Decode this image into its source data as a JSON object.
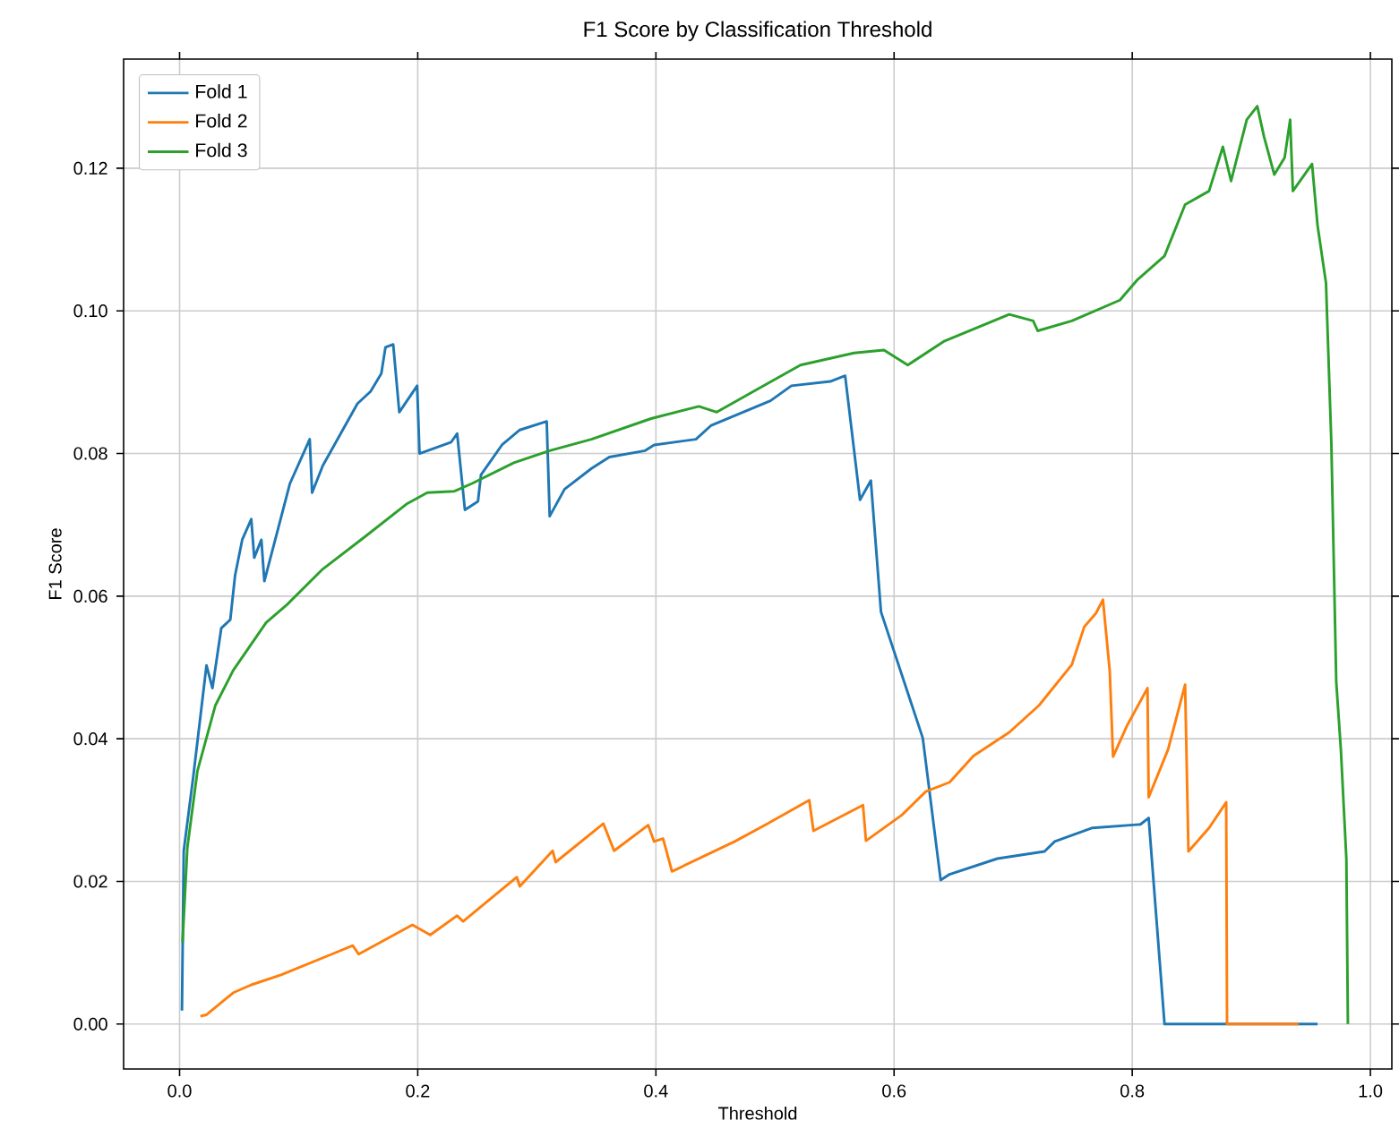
{
  "chart_data": {
    "type": "line",
    "title": "F1 Score by Classification Threshold",
    "xlabel": "Threshold",
    "ylabel": "F1 Score",
    "xlim": [
      -0.047,
      1.018
    ],
    "ylim": [
      -0.0063,
      0.1353
    ],
    "xticks": [
      {
        "value": 0,
        "label": "0.0"
      },
      {
        "value": 0.2,
        "label": "0.2"
      },
      {
        "value": 0.4,
        "label": "0.4"
      },
      {
        "value": 0.6,
        "label": "0.6"
      },
      {
        "value": 0.8,
        "label": "0.8"
      },
      {
        "value": 1,
        "label": "1.0"
      }
    ],
    "yticks": [
      {
        "value": 0,
        "label": "0.00"
      },
      {
        "value": 0.02,
        "label": "0.02"
      },
      {
        "value": 0.04,
        "label": "0.04"
      },
      {
        "value": 0.06,
        "label": "0.06"
      },
      {
        "value": 0.08,
        "label": "0.08"
      },
      {
        "value": 0.1,
        "label": "0.10"
      },
      {
        "value": 0.12,
        "label": "0.12"
      }
    ],
    "grid": true,
    "legend": "top left",
    "marker": "none",
    "line_style": "solid",
    "series": [
      {
        "name": "Fold 1",
        "color": "#1f77b4",
        "x": [
          0.002,
          0.0035,
          0.0115,
          0.0226,
          0.0276,
          0.035,
          0.0426,
          0.0466,
          0.0526,
          0.0602,
          0.0627,
          0.0687,
          0.0712,
          0.0927,
          0.1093,
          0.1113,
          0.1203,
          0.1353,
          0.1494,
          0.1604,
          0.1694,
          0.1729,
          0.1794,
          0.1845,
          0.1995,
          0.2015,
          0.2281,
          0.2331,
          0.2396,
          0.2506,
          0.2531,
          0.2707,
          0.2857,
          0.3083,
          0.3108,
          0.3233,
          0.3459,
          0.3609,
          0.391,
          0.3985,
          0.4336,
          0.4461,
          0.4962,
          0.5138,
          0.5464,
          0.5589,
          0.5714,
          0.5805,
          0.589,
          0.6241,
          0.6391,
          0.6466,
          0.6867,
          0.7263,
          0.7349,
          0.7666,
          0.8069,
          0.8138,
          0.8271,
          0.9556
        ],
        "values": [
          0.0019,
          0.0243,
          0.0347,
          0.0503,
          0.0471,
          0.0555,
          0.0567,
          0.0629,
          0.0679,
          0.0708,
          0.0654,
          0.0679,
          0.0621,
          0.0758,
          0.082,
          0.0745,
          0.0783,
          0.0828,
          0.087,
          0.0887,
          0.0912,
          0.0949,
          0.0953,
          0.0858,
          0.0895,
          0.08,
          0.0816,
          0.0828,
          0.0721,
          0.0733,
          0.077,
          0.0812,
          0.0833,
          0.0845,
          0.0712,
          0.075,
          0.0779,
          0.0795,
          0.0804,
          0.0812,
          0.082,
          0.0839,
          0.0874,
          0.0895,
          0.0901,
          0.0909,
          0.0735,
          0.0762,
          0.0578,
          0.0401,
          0.0202,
          0.021,
          0.0232,
          0.0242,
          0.0256,
          0.0275,
          0.028,
          0.0289,
          0.0,
          0.0
        ]
      },
      {
        "name": "Fold 2",
        "color": "#ff7f0e",
        "x": [
          0.0175,
          0.0226,
          0.0451,
          0.0602,
          0.0852,
          0.1278,
          0.1454,
          0.1504,
          0.1955,
          0.2105,
          0.2331,
          0.2381,
          0.2832,
          0.2857,
          0.3133,
          0.3158,
          0.3559,
          0.3649,
          0.3935,
          0.3985,
          0.406,
          0.4135,
          0.4662,
          0.4937,
          0.5288,
          0.5323,
          0.5739,
          0.5764,
          0.6065,
          0.6266,
          0.6466,
          0.6667,
          0.6967,
          0.7218,
          0.7493,
          0.7597,
          0.7695,
          0.7754,
          0.7811,
          0.7839,
          0.7955,
          0.8128,
          0.8138,
          0.8301,
          0.8444,
          0.8472,
          0.8645,
          0.8789,
          0.8796,
          0.9396
        ],
        "values": [
          0.0011,
          0.0013,
          0.0044,
          0.0055,
          0.0069,
          0.0098,
          0.011,
          0.0098,
          0.0139,
          0.0125,
          0.0152,
          0.0144,
          0.0206,
          0.0193,
          0.0243,
          0.0227,
          0.0281,
          0.0243,
          0.0279,
          0.0256,
          0.026,
          0.0214,
          0.0256,
          0.0281,
          0.0314,
          0.0271,
          0.0307,
          0.0257,
          0.0293,
          0.0326,
          0.0339,
          0.0376,
          0.0409,
          0.0447,
          0.0504,
          0.0557,
          0.0576,
          0.0595,
          0.0495,
          0.0375,
          0.0418,
          0.0471,
          0.0318,
          0.0385,
          0.0476,
          0.0242,
          0.0275,
          0.0311,
          0.0,
          0.0
        ]
      },
      {
        "name": "Fold 3",
        "color": "#2ca02c",
        "x": [
          0.0025,
          0.0065,
          0.015,
          0.0301,
          0.0451,
          0.0727,
          0.0902,
          0.1203,
          0.1554,
          0.1905,
          0.208,
          0.2306,
          0.2456,
          0.2807,
          0.3108,
          0.3459,
          0.396,
          0.4361,
          0.4511,
          0.4862,
          0.5214,
          0.5664,
          0.5915,
          0.6115,
          0.6416,
          0.6967,
          0.7168,
          0.7206,
          0.7493,
          0.7896,
          0.804,
          0.8271,
          0.8444,
          0.8645,
          0.8761,
          0.883,
          0.8962,
          0.905,
          0.9107,
          0.9193,
          0.928,
          0.9326,
          0.9349,
          0.951,
          0.9556,
          0.9627,
          0.9672,
          0.9713,
          0.9752,
          0.9798,
          0.9811
        ],
        "values": [
          0.0115,
          0.0247,
          0.0355,
          0.0447,
          0.0496,
          0.0563,
          0.0588,
          0.0638,
          0.0683,
          0.0729,
          0.0745,
          0.0747,
          0.0758,
          0.0787,
          0.0804,
          0.082,
          0.0849,
          0.0866,
          0.0858,
          0.0891,
          0.0924,
          0.0941,
          0.0945,
          0.0924,
          0.0957,
          0.0995,
          0.0986,
          0.0972,
          0.0986,
          0.1015,
          0.1043,
          0.1077,
          0.1149,
          0.1168,
          0.123,
          0.1182,
          0.1268,
          0.1287,
          0.1244,
          0.1191,
          0.1215,
          0.1268,
          0.1168,
          0.1206,
          0.112,
          0.1039,
          0.0815,
          0.048,
          0.0385,
          0.0232,
          0.0
        ]
      }
    ]
  }
}
